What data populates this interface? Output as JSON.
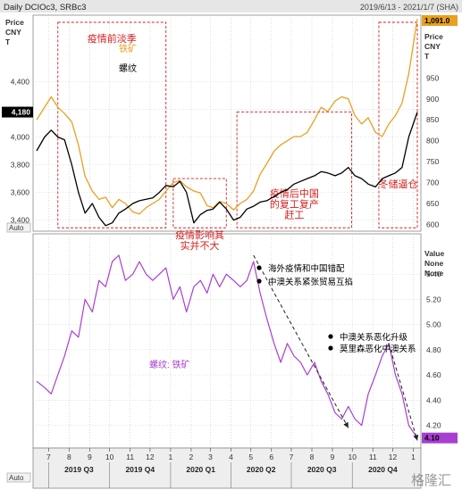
{
  "header": {
    "title": "Daily DCIOc3, SRBc3",
    "date_range": "2019/6/13 - 2021/1/7 (SHA)",
    "auto_label_top": "Auto",
    "auto_label_bottom": "Auto"
  },
  "chart_data": [
    {
      "type": "line",
      "left_axis_label": [
        "Price",
        "CNY",
        "T"
      ],
      "right_axis_label": [
        "Price",
        "CNY",
        "T"
      ],
      "left_ticks": [
        3400,
        3600,
        3800,
        4000,
        4200,
        4400
      ],
      "left_tick_labels": [
        "3,400",
        "3,600",
        "3,800",
        "4,000",
        "4,200",
        "4,400"
      ],
      "left_last_value": "4,180",
      "right_ticks": [
        600,
        650,
        700,
        750,
        800,
        850,
        900,
        950
      ],
      "right_last_value": "1,091.0",
      "left_ylim": [
        3320,
        4880
      ],
      "right_ylim": [
        584,
        1100
      ],
      "series": [
        {
          "name": "铁矿",
          "axis": "right",
          "color": "#e8a020",
          "x": [
            "2019-06-13",
            "2019-06-25",
            "2019-07-05",
            "2019-07-15",
            "2019-07-25",
            "2019-08-05",
            "2019-08-15",
            "2019-08-25",
            "2019-09-05",
            "2019-09-15",
            "2019-09-25",
            "2019-10-05",
            "2019-10-15",
            "2019-10-25",
            "2019-11-05",
            "2019-11-15",
            "2019-11-25",
            "2019-12-05",
            "2019-12-15",
            "2019-12-25",
            "2020-01-05",
            "2020-01-15",
            "2020-01-25",
            "2020-02-05",
            "2020-02-15",
            "2020-02-25",
            "2020-03-05",
            "2020-03-15",
            "2020-03-25",
            "2020-04-05",
            "2020-04-15",
            "2020-04-25",
            "2020-05-05",
            "2020-05-15",
            "2020-05-25",
            "2020-06-05",
            "2020-06-15",
            "2020-06-25",
            "2020-07-05",
            "2020-07-15",
            "2020-07-25",
            "2020-08-05",
            "2020-08-15",
            "2020-08-25",
            "2020-09-05",
            "2020-09-15",
            "2020-09-25",
            "2020-10-05",
            "2020-10-15",
            "2020-10-25",
            "2020-11-05",
            "2020-11-15",
            "2020-11-25",
            "2020-12-05",
            "2020-12-15",
            "2020-12-25",
            "2021-01-07"
          ],
          "values": [
            850,
            880,
            905,
            880,
            865,
            845,
            790,
            715,
            680,
            660,
            665,
            640,
            660,
            650,
            630,
            625,
            640,
            650,
            660,
            680,
            700,
            705,
            690,
            680,
            675,
            645,
            640,
            655,
            650,
            635,
            650,
            660,
            680,
            720,
            745,
            775,
            790,
            800,
            810,
            810,
            820,
            850,
            880,
            870,
            895,
            905,
            900,
            860,
            840,
            855,
            820,
            810,
            840,
            860,
            890,
            960,
            1091
          ]
        },
        {
          "name": "螺纹",
          "axis": "left",
          "color": "#000000",
          "x": [
            "2019-06-13",
            "2019-06-25",
            "2019-07-05",
            "2019-07-15",
            "2019-07-25",
            "2019-08-05",
            "2019-08-15",
            "2019-08-25",
            "2019-09-05",
            "2019-09-15",
            "2019-09-25",
            "2019-10-05",
            "2019-10-15",
            "2019-10-25",
            "2019-11-05",
            "2019-11-15",
            "2019-11-25",
            "2019-12-05",
            "2019-12-15",
            "2019-12-25",
            "2020-01-05",
            "2020-01-15",
            "2020-01-25",
            "2020-02-05",
            "2020-02-15",
            "2020-02-25",
            "2020-03-05",
            "2020-03-15",
            "2020-03-25",
            "2020-04-05",
            "2020-04-15",
            "2020-04-25",
            "2020-05-05",
            "2020-05-15",
            "2020-05-25",
            "2020-06-05",
            "2020-06-15",
            "2020-06-25",
            "2020-07-05",
            "2020-07-15",
            "2020-07-25",
            "2020-08-05",
            "2020-08-15",
            "2020-08-25",
            "2020-09-05",
            "2020-09-15",
            "2020-09-25",
            "2020-10-05",
            "2020-10-15",
            "2020-10-25",
            "2020-11-05",
            "2020-11-15",
            "2020-11-25",
            "2020-12-05",
            "2020-12-15",
            "2020-12-25",
            "2021-01-07"
          ],
          "values": [
            3900,
            4000,
            4050,
            4000,
            3980,
            3800,
            3600,
            3450,
            3520,
            3420,
            3360,
            3380,
            3450,
            3480,
            3520,
            3540,
            3550,
            3560,
            3600,
            3650,
            3640,
            3680,
            3600,
            3380,
            3440,
            3470,
            3480,
            3530,
            3480,
            3400,
            3420,
            3480,
            3500,
            3530,
            3540,
            3570,
            3600,
            3620,
            3660,
            3680,
            3700,
            3720,
            3750,
            3740,
            3720,
            3740,
            3780,
            3720,
            3700,
            3660,
            3640,
            3700,
            3720,
            3740,
            3780,
            4000,
            4180
          ]
        }
      ],
      "annotations": [
        {
          "text": [
            "疫情前淡季"
          ],
          "x_range": [
            "2019-07-15",
            "2019-12-25"
          ]
        },
        {
          "text": [
            "疫情影响其",
            "实并不大"
          ],
          "x_range": [
            "2020-01-05",
            "2020-03-25"
          ]
        },
        {
          "text": [
            "疫情后中国",
            "的复工复产",
            "赶工"
          ],
          "x_range": [
            "2020-04-10",
            "2020-09-30"
          ]
        },
        {
          "text": [
            "冬储逼仓"
          ],
          "x_range": [
            "2020-11-10",
            "2021-01-07"
          ]
        }
      ]
    },
    {
      "type": "line",
      "axis_label": [
        "Value",
        "None",
        "None"
      ],
      "ticks": [
        4.2,
        4.4,
        4.6,
        4.8,
        5.0,
        5.2,
        5.4
      ],
      "tick_labels": [
        "4.20",
        "4.40",
        "4.60",
        "4.80",
        "5.00",
        "5.20",
        "5.40"
      ],
      "last_value": "4.10",
      "ylim": [
        4.02,
        5.72
      ],
      "series": [
        {
          "name": "螺纹: 铁矿",
          "color": "#a83fd0",
          "x": [
            "2019-06-13",
            "2019-06-25",
            "2019-07-05",
            "2019-07-15",
            "2019-07-25",
            "2019-08-05",
            "2019-08-15",
            "2019-08-25",
            "2019-09-05",
            "2019-09-15",
            "2019-09-25",
            "2019-10-05",
            "2019-10-15",
            "2019-10-25",
            "2019-11-05",
            "2019-11-15",
            "2019-11-25",
            "2019-12-05",
            "2019-12-15",
            "2019-12-25",
            "2020-01-05",
            "2020-01-15",
            "2020-01-25",
            "2020-02-05",
            "2020-02-15",
            "2020-02-25",
            "2020-03-05",
            "2020-03-15",
            "2020-03-25",
            "2020-04-05",
            "2020-04-15",
            "2020-04-25",
            "2020-05-05",
            "2020-05-15",
            "2020-05-25",
            "2020-06-05",
            "2020-06-15",
            "2020-06-25",
            "2020-07-05",
            "2020-07-15",
            "2020-07-25",
            "2020-08-05",
            "2020-08-15",
            "2020-08-25",
            "2020-09-05",
            "2020-09-15",
            "2020-09-25",
            "2020-10-05",
            "2020-10-15",
            "2020-10-25",
            "2020-11-05",
            "2020-11-15",
            "2020-11-25",
            "2020-12-05",
            "2020-12-15",
            "2020-12-25",
            "2021-01-07"
          ],
          "values": [
            4.55,
            4.5,
            4.45,
            4.6,
            4.75,
            4.95,
            4.9,
            5.2,
            5.1,
            5.35,
            5.3,
            5.5,
            5.55,
            5.35,
            5.4,
            5.5,
            5.4,
            5.35,
            5.4,
            5.45,
            5.2,
            5.3,
            5.1,
            5.3,
            5.35,
            5.25,
            5.4,
            5.3,
            5.4,
            5.35,
            5.3,
            5.35,
            5.5,
            5.25,
            5.05,
            4.85,
            4.7,
            4.85,
            4.75,
            4.7,
            4.6,
            4.7,
            4.55,
            4.45,
            4.3,
            4.25,
            4.35,
            4.25,
            4.2,
            4.45,
            4.6,
            4.75,
            4.85,
            4.6,
            4.45,
            4.2,
            4.1
          ]
        }
      ],
      "notes": [
        {
          "text": "海外疫情和中国错配"
        },
        {
          "text": "中澳关系紧张贸易互掐"
        },
        {
          "text": "中澳关系恶化升级"
        },
        {
          "text": "莫里森恶化中澳关系"
        }
      ],
      "trend_arrows": [
        {
          "from": {
            "x": "2020-05-05",
            "y": 5.55
          },
          "to": {
            "x": "2020-09-25",
            "y": 4.18
          }
        },
        {
          "from": {
            "x": "2020-11-25",
            "y": 4.85
          },
          "to": {
            "x": "2021-01-07",
            "y": 4.08
          }
        }
      ]
    }
  ],
  "x_axis": {
    "month_ticks": [
      {
        "label": "7",
        "date": "2019-07-01"
      },
      {
        "label": "8",
        "date": "2019-08-01"
      },
      {
        "label": "9",
        "date": "2019-09-01"
      },
      {
        "label": "10",
        "date": "2019-10-01"
      },
      {
        "label": "11",
        "date": "2019-11-01"
      },
      {
        "label": "12",
        "date": "2019-12-01"
      },
      {
        "label": "1",
        "date": "2020-01-01"
      },
      {
        "label": "2",
        "date": "2020-02-01"
      },
      {
        "label": "3",
        "date": "2020-03-01"
      },
      {
        "label": "4",
        "date": "2020-04-01"
      },
      {
        "label": "5",
        "date": "2020-05-01"
      },
      {
        "label": "6",
        "date": "2020-06-01"
      },
      {
        "label": "7",
        "date": "2020-07-01"
      },
      {
        "label": "8",
        "date": "2020-08-01"
      },
      {
        "label": "9",
        "date": "2020-09-01"
      },
      {
        "label": "10",
        "date": "2020-10-01"
      },
      {
        "label": "11",
        "date": "2020-11-01"
      },
      {
        "label": "12",
        "date": "2020-12-01"
      },
      {
        "label": "1",
        "date": "2021-01-01"
      }
    ],
    "quarters": [
      {
        "label": "2019 Q3",
        "start": "2019-07-01",
        "end": "2019-10-01"
      },
      {
        "label": "2019 Q4",
        "start": "2019-10-01",
        "end": "2020-01-01"
      },
      {
        "label": "2020 Q1",
        "start": "2020-01-01",
        "end": "2020-04-01"
      },
      {
        "label": "2020 Q2",
        "start": "2020-04-01",
        "end": "2020-07-01"
      },
      {
        "label": "2020 Q3",
        "start": "2020-07-01",
        "end": "2020-10-01"
      },
      {
        "label": "2020 Q4",
        "start": "2020-10-01",
        "end": "2021-01-01"
      }
    ]
  },
  "watermark": "格隆汇",
  "colors": {
    "iron_ore": "#e8a020",
    "rebar": "#000000",
    "ratio": "#a83fd0",
    "annotation_red": "#d42020"
  }
}
